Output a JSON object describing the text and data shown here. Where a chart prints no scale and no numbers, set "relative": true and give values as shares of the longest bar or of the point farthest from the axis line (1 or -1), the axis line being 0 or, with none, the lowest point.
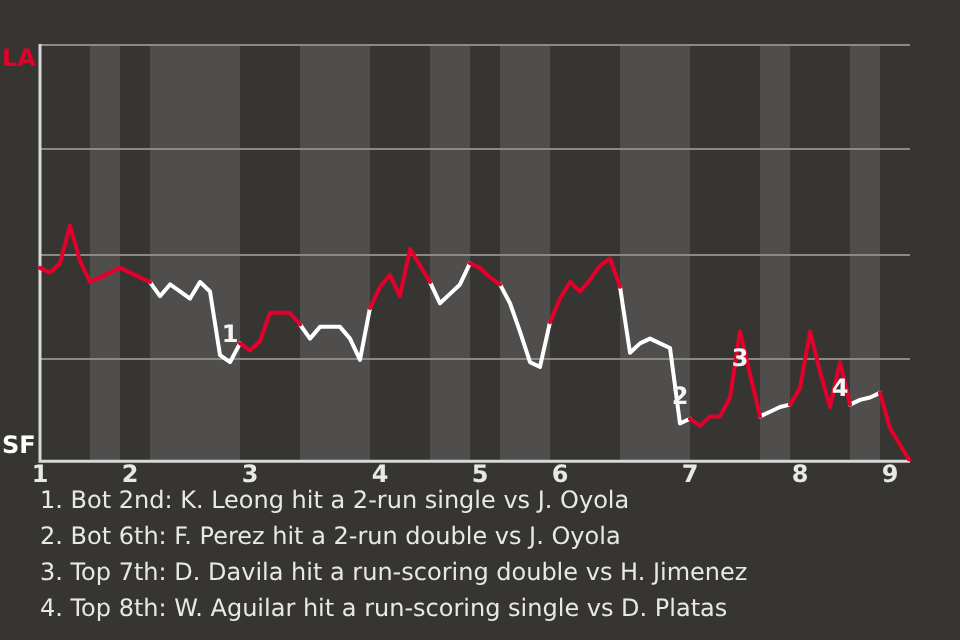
{
  "chart_data": {
    "type": "line",
    "relative": true,
    "marker": "none",
    "line_style": "solid",
    "categories": [
      "1",
      null,
      null,
      null,
      null,
      null,
      null,
      null,
      null,
      "2",
      null,
      null,
      null,
      null,
      null,
      null,
      null,
      null,
      null,
      null,
      null,
      "3",
      null,
      null,
      null,
      null,
      null,
      null,
      null,
      null,
      null,
      null,
      null,
      null,
      "4",
      null,
      null,
      null,
      null,
      null,
      null,
      null,
      null,
      null,
      "5",
      null,
      null,
      null,
      null,
      null,
      null,
      null,
      "6",
      null,
      null,
      null,
      null,
      null,
      null,
      null,
      null,
      null,
      null,
      null,
      null,
      "7",
      null,
      null,
      null,
      null,
      null,
      null,
      null,
      null,
      null,
      null,
      "8",
      null,
      null,
      null,
      null,
      null,
      null,
      null,
      null,
      "9",
      null,
      null
    ],
    "series": [
      {
        "name": "LA",
        "color": "#e4002b",
        "values": [
          0.82,
          0.8,
          0.84,
          1.0,
          0.85,
          0.76,
          0.78,
          0.8,
          0.82,
          0.8,
          0.78,
          0.76,
          null,
          null,
          null,
          null,
          null,
          null,
          null,
          null,
          0.5,
          0.47,
          0.51,
          0.63,
          0.63,
          0.63,
          0.58,
          null,
          null,
          null,
          null,
          null,
          null,
          0.65,
          0.74,
          0.79,
          0.7,
          0.9,
          0.83,
          0.76,
          null,
          null,
          null,
          0.84,
          0.82,
          0.78,
          0.75,
          null,
          null,
          null,
          null,
          0.59,
          0.69,
          0.76,
          0.72,
          0.77,
          0.83,
          0.86,
          0.74,
          null,
          null,
          null,
          null,
          null,
          null,
          0.18,
          0.15,
          0.19,
          0.19,
          0.27,
          0.55,
          0.37,
          0.19,
          null,
          null,
          0.24,
          0.31,
          0.55,
          0.38,
          0.23,
          0.42,
          0.24,
          null,
          null,
          0.29,
          0.14,
          0.07,
          0
        ]
      },
      {
        "name": "SF",
        "color": "#ffffff",
        "values": [
          null,
          null,
          null,
          null,
          null,
          null,
          null,
          null,
          null,
          null,
          null,
          0.76,
          0.7,
          0.75,
          0.72,
          0.69,
          0.76,
          0.72,
          0.45,
          0.42,
          0.5,
          null,
          null,
          null,
          null,
          null,
          0.58,
          0.52,
          0.57,
          0.57,
          0.57,
          0.52,
          0.43,
          0.65,
          null,
          null,
          null,
          null,
          null,
          0.76,
          0.67,
          0.71,
          0.75,
          0.84,
          null,
          null,
          0.75,
          0.67,
          0.55,
          0.42,
          0.4,
          0.59,
          null,
          null,
          null,
          null,
          null,
          null,
          0.74,
          0.46,
          0.5,
          0.52,
          0.5,
          0.48,
          0.16,
          0.18,
          null,
          null,
          null,
          null,
          null,
          null,
          0.19,
          0.21,
          0.23,
          0.24,
          null,
          null,
          null,
          null,
          null,
          0.24,
          0.26,
          0.27,
          0.29,
          null,
          null,
          null
        ]
      }
    ],
    "ref_lines": [
      {
        "axis": "y",
        "value": 0.44,
        "color": "#8a8986"
      },
      {
        "axis": "y",
        "value": 0.88,
        "color": "#8a8986"
      },
      {
        "axis": "y",
        "value": 1.33,
        "color": "#8a8986"
      }
    ],
    "annotations": [
      {
        "text": "1",
        "y": 0.42
      },
      {
        "text": "2",
        "y": 0.16
      },
      {
        "text": "3",
        "y": 0.55
      },
      {
        "text": "4",
        "y": 0.42
      },
      "1. Bot 2nd: K. Leong hit a 2-run single vs J. Oyola",
      "2. Bot 6th: F. Perez hit a 2-run double vs J. Oyola",
      "3. Top 7th: D. Davila hit a run-scoring double vs H. Jimenez",
      "4. Top 8th: W. Aguilar hit a run-scoring single vs D. Platas"
    ]
  }
}
